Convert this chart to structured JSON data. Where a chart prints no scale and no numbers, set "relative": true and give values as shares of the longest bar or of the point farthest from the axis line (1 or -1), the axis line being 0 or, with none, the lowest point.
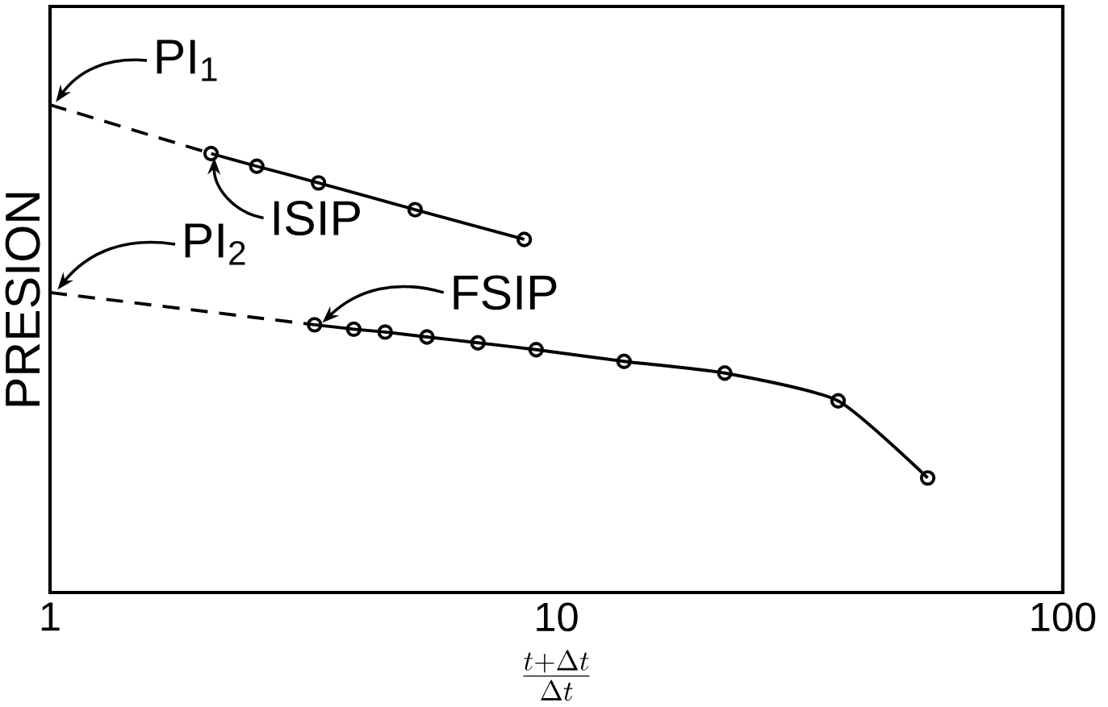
{
  "chart_data": {
    "type": "line",
    "xlabel": "\\frac{t+\\Delta t}{\\Delta t}",
    "ylabel": "PRESION",
    "log": "x",
    "xlim": [
      1,
      100
    ],
    "xticks": [
      1,
      10,
      100
    ],
    "relative": true,
    "annotations": [
      {
        "text": "PI$_{1}$",
        "x": 1,
        "y": 1.0
      },
      {
        "text": "ISIP",
        "x": 2.08,
        "y": 0.9
      },
      {
        "text": "PI$_{2}$",
        "x": 1,
        "y": 0.615
      },
      {
        "text": "FSIP",
        "x": 3.33,
        "y": 0.549
      }
    ],
    "series": [
      {
        "color": "#000000",
        "line_style": "dashed",
        "x": [
          1,
          2.08
        ],
        "values": [
          1.0,
          0.9
        ]
      },
      {
        "color": "#000000",
        "marker": "circle",
        "x": [
          2.08,
          2.56,
          3.39,
          5.26,
          8.64
        ],
        "values": [
          0.9,
          0.874,
          0.84,
          0.785,
          0.724
        ]
      },
      {
        "color": "#000000",
        "line_style": "dashed",
        "x": [
          1,
          3.33
        ],
        "values": [
          0.615,
          0.549
        ]
      },
      {
        "color": "#000000",
        "marker": "circle",
        "x": [
          3.33,
          3.98,
          4.59,
          5.55,
          7.0,
          9.12,
          13.6,
          21.5,
          36.0,
          54.1
        ],
        "values": [
          0.549,
          0.54,
          0.534,
          0.524,
          0.512,
          0.498,
          0.474,
          0.45,
          0.393,
          0.235
        ]
      }
    ]
  }
}
